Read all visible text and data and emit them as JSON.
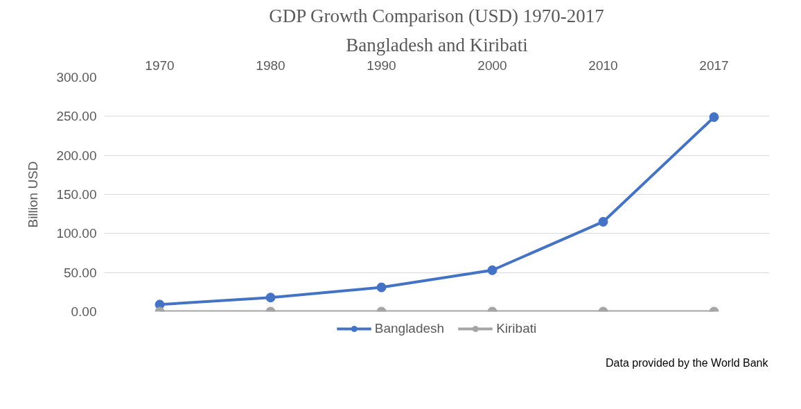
{
  "chart_data": {
    "type": "line",
    "title": "GDP Growth Comparison (USD) 1970-2017",
    "subtitle": "Bangladesh and Kiribati",
    "ylabel": "Billion USD",
    "categories": [
      "1970",
      "1980",
      "1990",
      "2000",
      "2010",
      "2017"
    ],
    "series": [
      {
        "name": "Bangladesh",
        "color": "#4472c4",
        "values": [
          9,
          18,
          31,
          53,
          115,
          249
        ]
      },
      {
        "name": "Kiribati",
        "color": "#a5a5a5",
        "values": [
          0,
          0,
          0,
          0,
          0,
          0
        ]
      }
    ],
    "ylim": [
      0,
      300
    ],
    "yticks": [
      {
        "value": 0,
        "label": "0.00"
      },
      {
        "value": 50,
        "label": "50.00"
      },
      {
        "value": 100,
        "label": "100.00"
      },
      {
        "value": 150,
        "label": "150.00"
      },
      {
        "value": 200,
        "label": "200.00"
      },
      {
        "value": 250,
        "label": "250.00"
      },
      {
        "value": 300,
        "label": "300.00"
      }
    ],
    "grid": "y",
    "legend": "bottom",
    "marker": "circle",
    "line_style": "solid",
    "annotations": [
      "Data provided by the World Bank"
    ]
  }
}
